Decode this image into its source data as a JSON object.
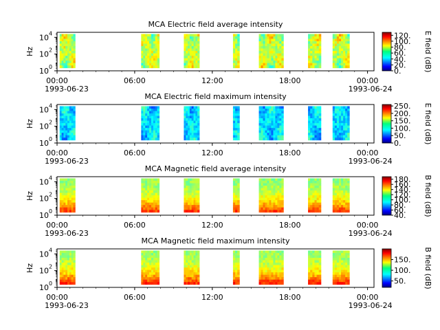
{
  "chart_data": [
    {
      "type": "heatmap",
      "title": "MCA  Electric field average intensity",
      "ylabel": "Hz",
      "ylim_log10": [
        0,
        4.6
      ],
      "y_ticks": [
        {
          "exp": "0",
          "v": 0
        },
        {
          "exp": "2",
          "v": 2
        },
        {
          "exp": "4",
          "v": 4
        }
      ],
      "x_ticks": [
        "00:00",
        "06:00",
        "12:00",
        "18:00",
        "00:00"
      ],
      "x_tick_hours": [
        0,
        6,
        12,
        18,
        24
      ],
      "date_start": "1993-06-23",
      "date_end": "1993-06-24",
      "colorbar": {
        "label": "E field (dB)",
        "min": 0,
        "max": 130,
        "ticks": [
          "0.",
          "20.",
          "40.",
          "60.",
          "80.",
          "100.",
          "120."
        ],
        "tick_values": [
          0,
          20,
          40,
          60,
          80,
          100,
          120
        ]
      },
      "segments_hours": [
        [
          0.2,
          1.4
        ],
        [
          6.5,
          7.9
        ],
        [
          9.8,
          11.0
        ],
        [
          13.6,
          14.1
        ],
        [
          15.6,
          17.5
        ],
        [
          19.4,
          20.4
        ],
        [
          21.3,
          22.6
        ]
      ],
      "value_range_db": [
        40,
        115
      ]
    },
    {
      "type": "heatmap",
      "title": "MCA  Electric field maximum intensity",
      "ylabel": "Hz",
      "ylim_log10": [
        0,
        4.6
      ],
      "y_ticks": [
        {
          "exp": "0",
          "v": 0
        },
        {
          "exp": "2",
          "v": 2
        },
        {
          "exp": "4",
          "v": 4
        }
      ],
      "x_ticks": [
        "00:00",
        "06:00",
        "12:00",
        "18:00",
        "00:00"
      ],
      "x_tick_hours": [
        0,
        6,
        12,
        18,
        24
      ],
      "date_start": "1993-06-23",
      "date_end": "1993-06-24",
      "colorbar": {
        "label": "E field (dB)",
        "min": 0,
        "max": 260,
        "ticks": [
          "0.",
          "50.",
          "100.",
          "150.",
          "200.",
          "250."
        ],
        "tick_values": [
          0,
          50,
          100,
          150,
          200,
          250
        ]
      },
      "segments_hours": [
        [
          0.2,
          1.4
        ],
        [
          6.5,
          7.9
        ],
        [
          9.8,
          11.0
        ],
        [
          13.6,
          14.1
        ],
        [
          15.6,
          17.5
        ],
        [
          19.4,
          20.4
        ],
        [
          21.3,
          22.6
        ]
      ],
      "value_range_db": [
        30,
        160
      ]
    },
    {
      "type": "heatmap",
      "title": "MCA  Magnetic field average intensity",
      "ylabel": "Hz",
      "ylim_log10": [
        0,
        4.6
      ],
      "y_ticks": [
        {
          "exp": "0",
          "v": 0
        },
        {
          "exp": "2",
          "v": 2
        },
        {
          "exp": "4",
          "v": 4
        }
      ],
      "x_ticks": [
        "00:00",
        "06:00",
        "12:00",
        "18:00",
        "00:00"
      ],
      "x_tick_hours": [
        0,
        6,
        12,
        18,
        24
      ],
      "date_start": "1993-06-23",
      "date_end": "1993-06-24",
      "colorbar": {
        "label": "B field (dB)",
        "min": 40,
        "max": 190,
        "ticks": [
          "40.",
          "60.",
          "80.",
          "100.",
          "120.",
          "140.",
          "160.",
          "180."
        ],
        "tick_values": [
          40,
          60,
          80,
          100,
          120,
          140,
          160,
          180
        ]
      },
      "segments_hours": [
        [
          0.2,
          1.4
        ],
        [
          6.5,
          7.9
        ],
        [
          9.8,
          11.0
        ],
        [
          13.6,
          14.1
        ],
        [
          15.6,
          17.5
        ],
        [
          19.4,
          20.4
        ],
        [
          21.3,
          22.6
        ]
      ],
      "value_range_db": [
        90,
        170
      ]
    },
    {
      "type": "heatmap",
      "title": "MCA  Magnetic field maximum intensity",
      "ylabel": "Hz",
      "ylim_log10": [
        0,
        4.6
      ],
      "y_ticks": [
        {
          "exp": "0",
          "v": 0
        },
        {
          "exp": "2",
          "v": 2
        },
        {
          "exp": "4",
          "v": 4
        }
      ],
      "x_ticks": [
        "00:00",
        "06:00",
        "12:00",
        "18:00",
        "00:00"
      ],
      "x_tick_hours": [
        0,
        6,
        12,
        18,
        24
      ],
      "date_start": "1993-06-23",
      "date_end": "1993-06-24",
      "colorbar": {
        "label": "B field (dB)",
        "min": 20,
        "max": 200,
        "ticks": [
          "50.",
          "100.",
          "150."
        ],
        "tick_values": [
          50,
          100,
          150
        ]
      },
      "segments_hours": [
        [
          0.2,
          1.4
        ],
        [
          6.5,
          7.9
        ],
        [
          9.8,
          11.0
        ],
        [
          13.6,
          14.1
        ],
        [
          15.6,
          17.5
        ],
        [
          19.4,
          20.4
        ],
        [
          21.3,
          22.6
        ]
      ],
      "value_range_db": [
        80,
        180
      ]
    }
  ]
}
